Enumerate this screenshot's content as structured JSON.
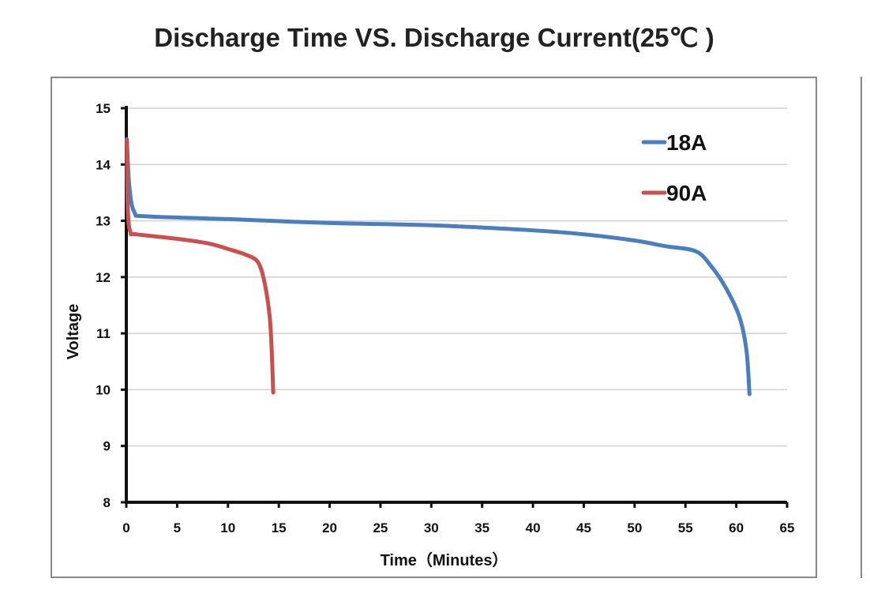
{
  "chart_data": {
    "type": "line",
    "title": "Discharge Time VS. Discharge Current(25℃ )",
    "xlabel": "Time（Minutes）",
    "ylabel": "Voltage",
    "xlim": [
      0,
      65
    ],
    "ylim": [
      8,
      15
    ],
    "xticks": [
      0,
      5,
      10,
      15,
      20,
      25,
      30,
      35,
      40,
      45,
      50,
      55,
      60,
      65
    ],
    "yticks": [
      8,
      9,
      10,
      11,
      12,
      13,
      14,
      15
    ],
    "grid": true,
    "legend_position": "top-right",
    "series": [
      {
        "name": "18A",
        "color": "#4a7ebf",
        "x": [
          0.05,
          0.3,
          0.8,
          2,
          10,
          20,
          30,
          40,
          45,
          50,
          53,
          56,
          57.5,
          59,
          60.3,
          61,
          61.3
        ],
        "y": [
          14.45,
          13.6,
          13.15,
          13.08,
          13.03,
          12.96,
          12.92,
          12.83,
          12.76,
          12.65,
          12.55,
          12.46,
          12.2,
          11.8,
          11.3,
          10.7,
          9.92
        ]
      },
      {
        "name": "90A",
        "color": "#c9504f",
        "x": [
          0.05,
          0.15,
          0.4,
          1,
          5,
          8,
          10,
          12,
          13,
          13.6,
          14.1,
          14.3,
          14.45
        ],
        "y": [
          14.42,
          13.2,
          12.8,
          12.76,
          12.68,
          12.6,
          12.5,
          12.38,
          12.25,
          11.9,
          11.3,
          10.7,
          9.95
        ]
      }
    ]
  }
}
